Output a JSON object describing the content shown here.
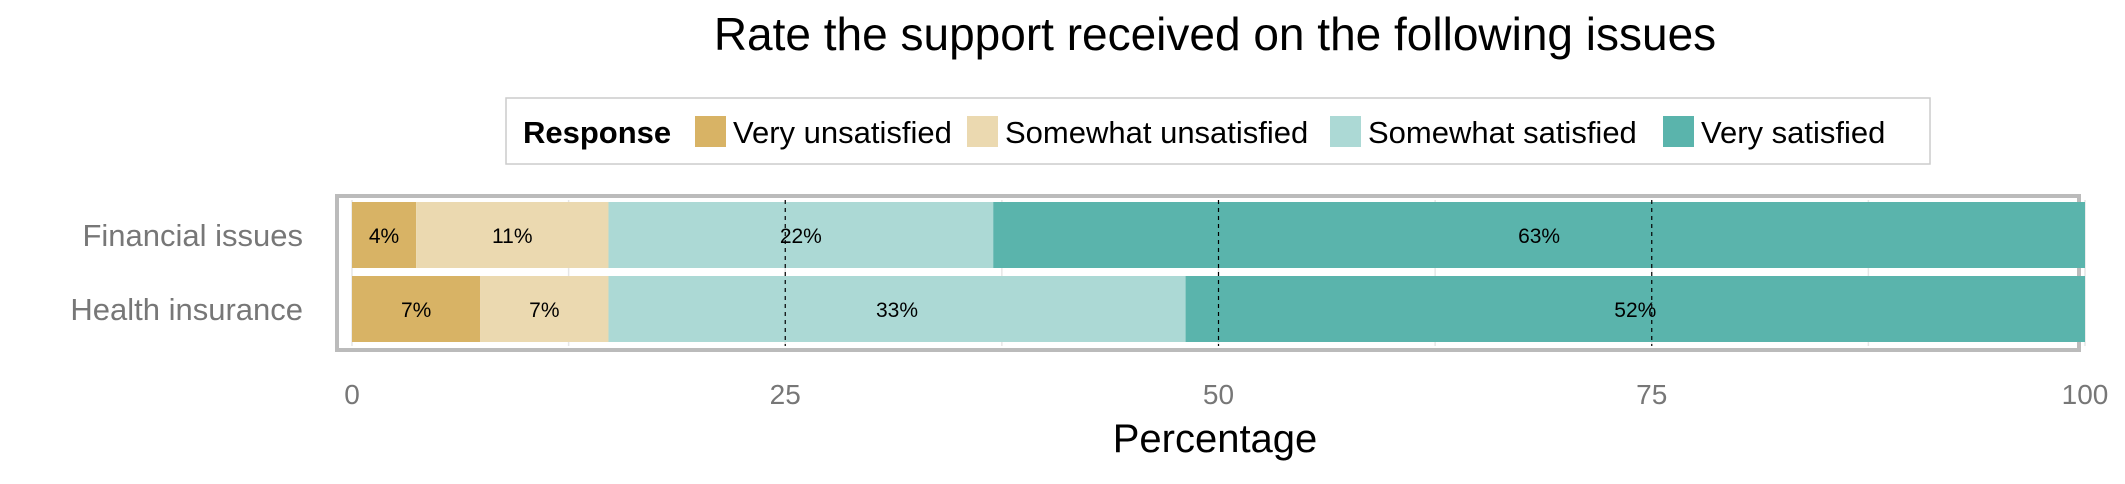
{
  "chart_data": {
    "type": "bar",
    "orientation": "horizontal",
    "stacked": true,
    "title": "Rate the support received on the following issues",
    "xlabel": "Percentage",
    "ylabel": "",
    "xlim": [
      0,
      100
    ],
    "x_ticks": [
      0,
      25,
      50,
      75,
      100
    ],
    "grid": true,
    "legend_position": "top",
    "legend_title": "Response",
    "categories": [
      "Financial issues",
      "Health insurance"
    ],
    "series": [
      {
        "name": "Very unsatisfied",
        "color": "#d8b365",
        "values": [
          3.7,
          7.4
        ],
        "labels": [
          "4%",
          "7%"
        ]
      },
      {
        "name": "Somewhat unsatisfied",
        "color": "#ebd9b0",
        "values": [
          11.1,
          7.4
        ],
        "labels": [
          "11%",
          "7%"
        ]
      },
      {
        "name": "Somewhat satisfied",
        "color": "#acd9d5",
        "values": [
          22.2,
          33.3
        ],
        "labels": [
          "22%",
          "33%"
        ]
      },
      {
        "name": "Very satisfied",
        "color": "#5ab4ac",
        "values": [
          63.0,
          51.9
        ],
        "labels": [
          "63%",
          "52%"
        ]
      }
    ]
  }
}
